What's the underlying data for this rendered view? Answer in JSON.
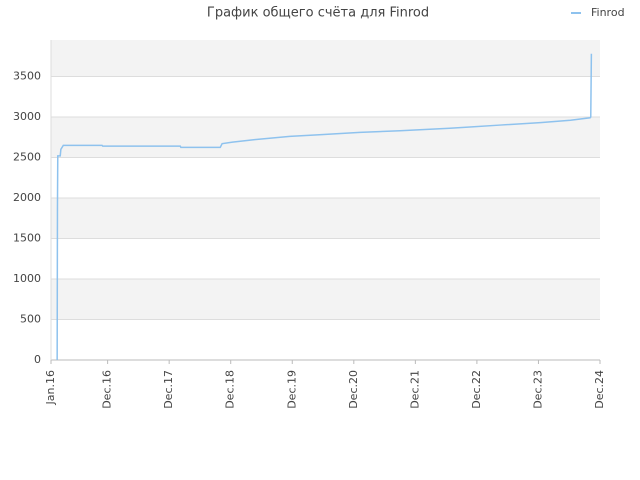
{
  "chart_data": {
    "type": "line",
    "title": "График общего счёта для Finrod",
    "series": [
      {
        "name": "Finrod",
        "color": "#8ec2ee",
        "x": [
          2016.1,
          2016.105,
          2016.11,
          2016.15,
          2016.16,
          2016.2,
          2016.83,
          2016.84,
          2018.1,
          2018.11,
          2018.75,
          2018.78,
          2018.95,
          2019.31,
          2019.88,
          2020.36,
          2021.02,
          2021.67,
          2022.48,
          2023.3,
          2023.95,
          2024.44,
          2024.76,
          2024.77,
          2024.78
        ],
        "values": [
          0,
          1900,
          2520,
          2520,
          2600,
          2650,
          2650,
          2640,
          2640,
          2625,
          2625,
          2670,
          2690,
          2720,
          2760,
          2780,
          2810,
          2830,
          2860,
          2900,
          2930,
          2960,
          2990,
          3000,
          3780
        ]
      }
    ],
    "xlim": [
      2016.0,
      2024.92
    ],
    "xticks": [
      {
        "value": 2016.0,
        "label": "Jan.16"
      },
      {
        "value": 2016.92,
        "label": "Dec.16"
      },
      {
        "value": 2017.92,
        "label": "Dec.17"
      },
      {
        "value": 2018.92,
        "label": "Dec.18"
      },
      {
        "value": 2019.92,
        "label": "Dec.19"
      },
      {
        "value": 2020.92,
        "label": "Dec.20"
      },
      {
        "value": 2021.92,
        "label": "Dec.21"
      },
      {
        "value": 2022.92,
        "label": "Dec.22"
      },
      {
        "value": 2023.92,
        "label": "Dec.23"
      },
      {
        "value": 2024.92,
        "label": "Dec.24"
      }
    ],
    "ylim": [
      0,
      3950
    ],
    "yticks": [
      0,
      500,
      1000,
      1500,
      2000,
      2500,
      3000,
      3500
    ],
    "grid": true,
    "legend": "top-right"
  }
}
